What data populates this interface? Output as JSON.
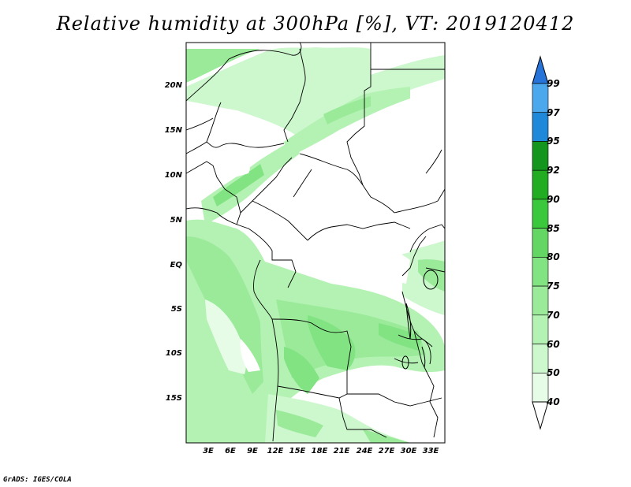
{
  "title": "Relative humidity at 300hPa [%], VT: 2019120412",
  "footer": "GrADS: IGES/COLA",
  "lat_labels": [
    "20N",
    "15N",
    "10N",
    "5N",
    "EQ",
    "5S",
    "10S",
    "15S"
  ],
  "lon_labels": [
    "3E",
    "6E",
    "9E",
    "12E",
    "15E",
    "18E",
    "21E",
    "24E",
    "27E",
    "30E",
    "33E"
  ],
  "colorbar": {
    "levels": [
      "40",
      "50",
      "60",
      "70",
      "75",
      "80",
      "85",
      "90",
      "92",
      "95",
      "97",
      "99"
    ],
    "colors": [
      "#ffffff",
      "#e6fce6",
      "#cdf7cd",
      "#b4f2b4",
      "#9aea9a",
      "#82e382",
      "#64d664",
      "#3cc83c",
      "#22ac22",
      "#14961e",
      "#1f88d8",
      "#4ba8ec",
      "#2673d9"
    ]
  }
}
